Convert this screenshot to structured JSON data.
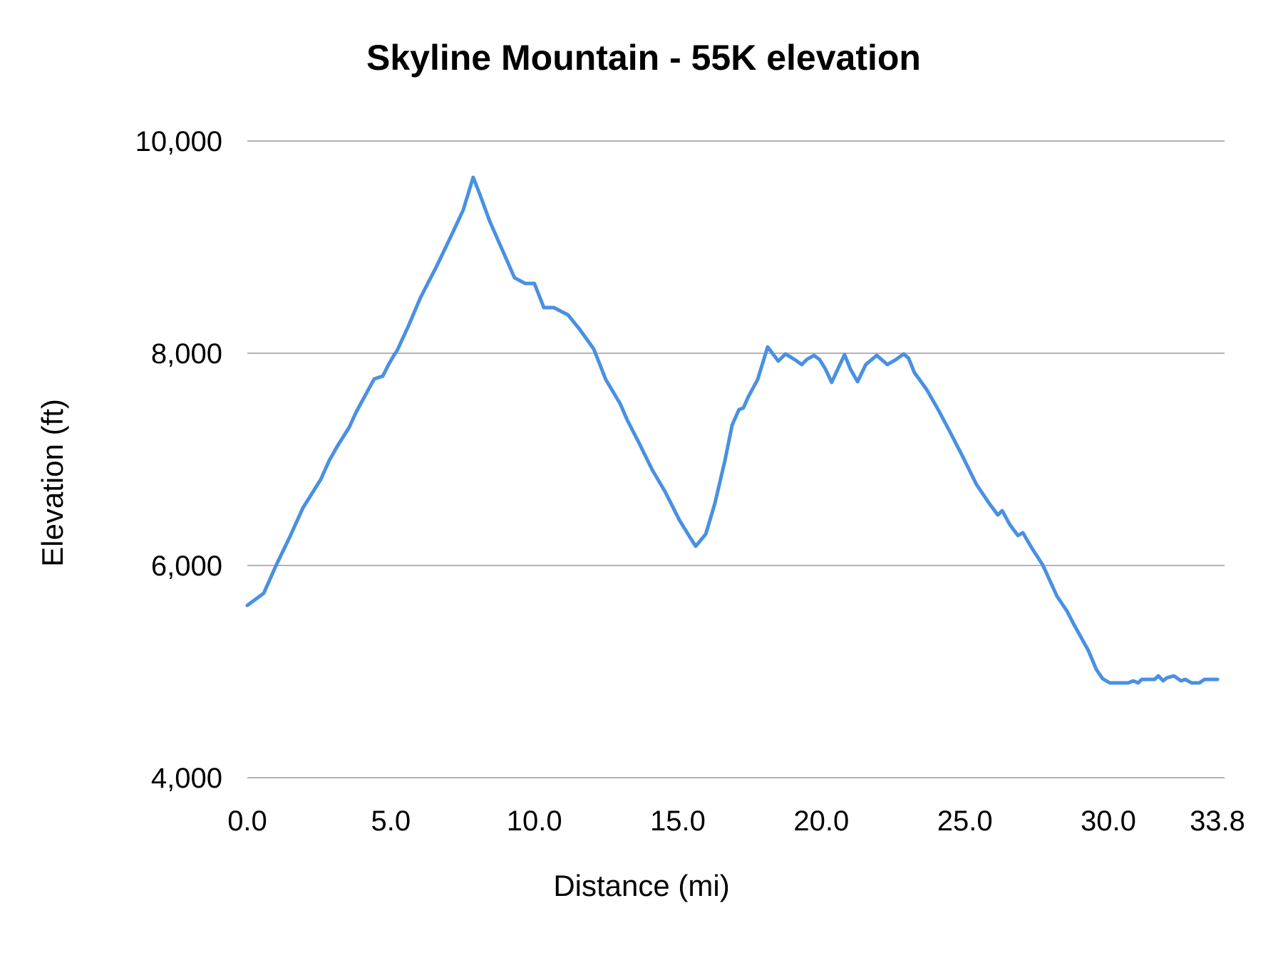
{
  "chart_data": {
    "type": "line",
    "title": "Skyline Mountain - 55K elevation",
    "xlabel": "Distance (mi)",
    "ylabel": "Elevation (ft)",
    "xlim": [
      0,
      33.8
    ],
    "ylim": [
      4000,
      10000
    ],
    "x_ticks": [
      "0.0",
      "5.0",
      "10.0",
      "15.0",
      "20.0",
      "25.0",
      "30.0",
      "33.8"
    ],
    "x_tick_values": [
      0,
      5,
      10,
      15,
      20,
      25,
      30,
      33.8
    ],
    "y_ticks": [
      "4,000",
      "6,000",
      "8,000",
      "10,000"
    ],
    "y_tick_values": [
      4000,
      6000,
      8000,
      10000
    ],
    "grid": "horizontal",
    "legend": null,
    "series": [
      {
        "name": "Elevation",
        "color": "#4a90e2",
        "x": [
          0.0,
          0.57,
          1.0,
          1.49,
          1.94,
          2.56,
          2.85,
          3.13,
          3.55,
          3.8,
          4.42,
          4.72,
          4.92,
          5.12,
          5.21,
          5.62,
          6.03,
          6.58,
          7.08,
          7.52,
          7.87,
          8.1,
          8.44,
          8.84,
          9.31,
          9.68,
          10.0,
          10.33,
          10.68,
          11.17,
          11.57,
          12.07,
          12.49,
          12.99,
          13.24,
          13.66,
          14.11,
          14.55,
          15.05,
          15.4,
          15.62,
          15.97,
          16.29,
          16.64,
          16.89,
          17.13,
          17.28,
          17.46,
          17.78,
          18.13,
          18.5,
          18.75,
          19.07,
          19.32,
          19.49,
          19.74,
          19.94,
          20.14,
          20.36,
          20.61,
          20.81,
          21.01,
          21.26,
          21.55,
          21.93,
          22.3,
          22.6,
          22.87,
          23.04,
          23.24,
          23.67,
          24.11,
          24.49,
          24.91,
          25.4,
          25.85,
          26.15,
          26.3,
          26.57,
          26.85,
          27.02,
          27.34,
          27.71,
          28.21,
          28.56,
          28.8,
          29.3,
          29.58,
          29.8,
          30.05,
          30.69,
          30.87,
          31.04,
          31.16,
          31.61,
          31.74,
          31.91,
          32.03,
          32.28,
          32.53,
          32.68,
          32.9,
          33.17,
          33.35,
          33.8
        ],
        "y": [
          5624,
          5738,
          6000,
          6275,
          6544,
          6812,
          6987,
          7121,
          7302,
          7450,
          7758,
          7785,
          7893,
          7987,
          8020,
          8262,
          8523,
          8812,
          9094,
          9349,
          9658,
          9497,
          9248,
          9000,
          8711,
          8658,
          8658,
          8430,
          8430,
          8362,
          8228,
          8040,
          7752,
          7524,
          7369,
          7148,
          6899,
          6698,
          6430,
          6275,
          6181,
          6295,
          6584,
          6987,
          7322,
          7470,
          7483,
          7591,
          7752,
          8060,
          7926,
          7993,
          7940,
          7893,
          7940,
          7980,
          7940,
          7852,
          7725,
          7872,
          7987,
          7852,
          7732,
          7893,
          7980,
          7893,
          7940,
          7993,
          7953,
          7819,
          7658,
          7450,
          7255,
          7034,
          6765,
          6584,
          6476,
          6517,
          6383,
          6282,
          6309,
          6161,
          6007,
          5711,
          5570,
          5443,
          5201,
          5020,
          4933,
          4893,
          4893,
          4913,
          4893,
          4926,
          4926,
          4960,
          4913,
          4940,
          4960,
          4913,
          4926,
          4893,
          4893,
          4926,
          4926
        ]
      }
    ]
  },
  "style": {
    "line_color": "#4a90e2",
    "grid_color": "#b3b3b3",
    "text_color": "#000000",
    "background": "#ffffff"
  }
}
